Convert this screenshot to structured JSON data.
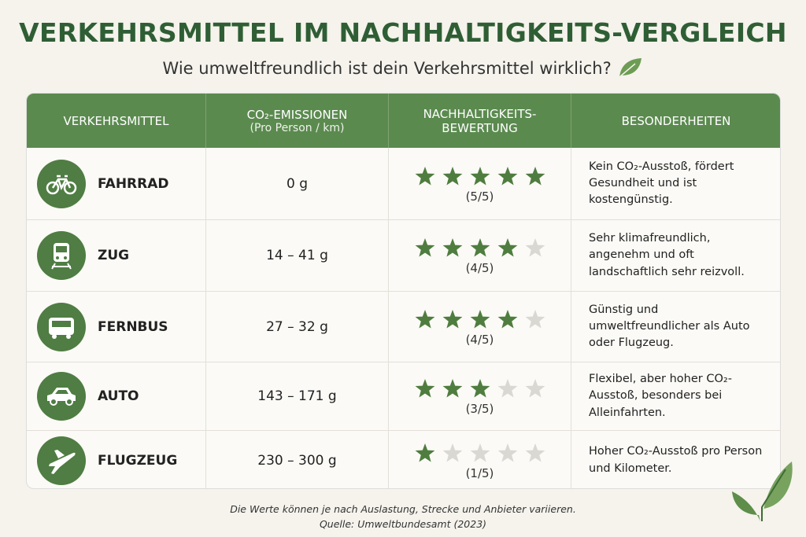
{
  "title": "VERKEHRSMITTEL IM NACHHALTIGKEITS-VERGLEICH",
  "subtitle": "Wie umweltfreundlich ist dein Verkehrsmittel wirklich?",
  "table": {
    "headers": [
      {
        "lines": [
          "VERKEHRSMITTEL"
        ]
      },
      {
        "lines": [
          "CO₂-EMISSIONEN",
          "(Pro Person / km)"
        ]
      },
      {
        "lines": [
          "NACHHALTIGKEITS-",
          "BEWERTUNG"
        ]
      },
      {
        "lines": [
          "BESONDERHEITEN"
        ]
      }
    ],
    "max_stars": 5,
    "rows": [
      {
        "name": "FAHRRAD",
        "emissions": "0 g",
        "stars": 5,
        "rating": "(5/5)",
        "notes": "Kein CO₂-Ausstoß, fördert Gesundheit und ist kostengünstig."
      },
      {
        "name": "ZUG",
        "emissions": "14 – 41 g",
        "stars": 4,
        "rating": "(4/5)",
        "notes": "Sehr klimafreundlich, angenehm und oft landschaftlich sehr reizvoll."
      },
      {
        "name": "FERNBUS",
        "emissions": "27 – 32 g",
        "stars": 4,
        "rating": "(4/5)",
        "notes": "Günstig und umweltfreundlicher als Auto oder Flugzeug."
      },
      {
        "name": "AUTO",
        "emissions": "143 – 171 g",
        "stars": 3,
        "rating": "(3/5)",
        "notes": "Flexibel, aber hoher CO₂-Ausstoß, besonders bei Alleinfahrten."
      },
      {
        "name": "FLUGZEUG",
        "emissions": "230 – 300 g",
        "stars": 1,
        "rating": "(1/5)",
        "notes": "Hoher CO₂-Ausstoß pro Person und Kilometer."
      }
    ]
  },
  "footer": {
    "note": "Die Werte können je nach Auslastung, Strecke und Anbieter variieren.",
    "source": "Quelle: Umweltbundesamt (2023)"
  }
}
